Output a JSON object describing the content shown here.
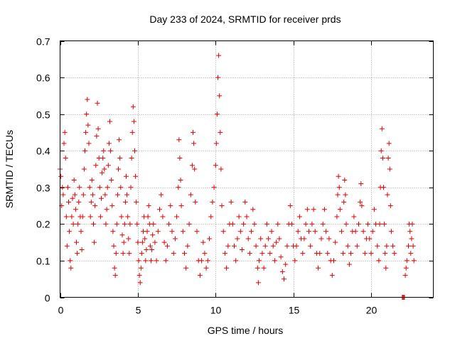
{
  "chart_data": {
    "type": "scatter",
    "title": "Day 233 of 2024, SRMTID for receiver prds",
    "xlabel": "GPS time / hours",
    "ylabel": "SRMTID / TECUs",
    "xlim": [
      0,
      24
    ],
    "ylim": [
      0,
      0.7
    ],
    "xticks": [
      0,
      5,
      10,
      15,
      20
    ],
    "yticks": [
      0,
      0.1,
      0.2,
      0.3,
      0.4,
      0.5,
      0.6,
      0.7
    ],
    "xtick_labels": [
      "0",
      "5",
      "10",
      "15",
      "20"
    ],
    "ytick_labels": [
      "0",
      "0.1",
      "0.2",
      "0.3",
      "0.4",
      "0.5",
      "0.6",
      "0.7"
    ],
    "grid": true,
    "marker": "+",
    "color": "#e00000",
    "series": [
      {
        "name": "SRMTID",
        "points": [
          [
            0.0,
            0.35
          ],
          [
            0.05,
            0.33
          ],
          [
            0.1,
            0.25
          ],
          [
            0.15,
            0.3
          ],
          [
            0.2,
            0.28
          ],
          [
            0.25,
            0.42
          ],
          [
            0.3,
            0.45
          ],
          [
            0.35,
            0.38
          ],
          [
            0.4,
            0.22
          ],
          [
            0.45,
            0.14
          ],
          [
            0.5,
            0.3
          ],
          [
            0.55,
            0.26
          ],
          [
            0.6,
            0.18
          ],
          [
            0.65,
            0.1
          ],
          [
            0.7,
            0.08
          ],
          [
            0.75,
            0.22
          ],
          [
            0.8,
            0.27
          ],
          [
            0.85,
            0.2
          ],
          [
            0.9,
            0.32
          ],
          [
            0.95,
            0.28
          ],
          [
            1.0,
            0.24
          ],
          [
            1.05,
            0.15
          ],
          [
            1.1,
            0.12
          ],
          [
            1.15,
            0.2
          ],
          [
            1.2,
            0.26
          ],
          [
            1.25,
            0.3
          ],
          [
            1.3,
            0.22
          ],
          [
            1.35,
            0.18
          ],
          [
            1.4,
            0.13
          ],
          [
            1.45,
            0.22
          ],
          [
            1.5,
            0.28
          ],
          [
            1.55,
            0.35
          ],
          [
            1.6,
            0.4
          ],
          [
            1.65,
            0.45
          ],
          [
            1.7,
            0.5
          ],
          [
            1.75,
            0.54
          ],
          [
            1.8,
            0.47
          ],
          [
            1.85,
            0.42
          ],
          [
            1.9,
            0.3
          ],
          [
            1.95,
            0.22
          ],
          [
            2.0,
            0.26
          ],
          [
            2.05,
            0.32
          ],
          [
            2.1,
            0.28
          ],
          [
            2.15,
            0.2
          ],
          [
            2.2,
            0.15
          ],
          [
            2.25,
            0.25
          ],
          [
            2.3,
            0.36
          ],
          [
            2.35,
            0.44
          ],
          [
            2.4,
            0.53
          ],
          [
            2.45,
            0.46
          ],
          [
            2.5,
            0.38
          ],
          [
            2.55,
            0.3
          ],
          [
            2.6,
            0.22
          ],
          [
            2.65,
            0.27
          ],
          [
            2.7,
            0.34
          ],
          [
            2.75,
            0.38
          ],
          [
            2.8,
            0.4
          ],
          [
            2.85,
            0.35
          ],
          [
            2.9,
            0.28
          ],
          [
            2.95,
            0.2
          ],
          [
            3.0,
            0.24
          ],
          [
            3.05,
            0.3
          ],
          [
            3.1,
            0.36
          ],
          [
            3.15,
            0.42
          ],
          [
            3.2,
            0.48
          ],
          [
            3.25,
            0.4
          ],
          [
            3.3,
            0.32
          ],
          [
            3.35,
            0.25
          ],
          [
            3.4,
            0.18
          ],
          [
            3.45,
            0.14
          ],
          [
            3.5,
            0.08
          ],
          [
            3.55,
            0.06
          ],
          [
            3.6,
            0.12
          ],
          [
            3.65,
            0.2
          ],
          [
            3.7,
            0.28
          ],
          [
            3.75,
            0.35
          ],
          [
            3.8,
            0.43
          ],
          [
            3.85,
            0.38
          ],
          [
            3.9,
            0.3
          ],
          [
            3.95,
            0.22
          ],
          [
            4.0,
            0.17
          ],
          [
            4.05,
            0.12
          ],
          [
            4.1,
            0.15
          ],
          [
            4.15,
            0.2
          ],
          [
            4.2,
            0.26
          ],
          [
            4.25,
            0.33
          ],
          [
            4.3,
            0.28
          ],
          [
            4.35,
            0.22
          ],
          [
            4.4,
            0.16
          ],
          [
            4.45,
            0.12
          ],
          [
            4.5,
            0.2
          ],
          [
            4.55,
            0.3
          ],
          [
            4.6,
            0.38
          ],
          [
            4.65,
            0.45
          ],
          [
            4.7,
            0.52
          ],
          [
            4.75,
            0.48
          ],
          [
            4.8,
            0.4
          ],
          [
            4.85,
            0.33
          ],
          [
            4.9,
            0.26
          ],
          [
            4.95,
            0.2
          ],
          [
            5.0,
            0.15
          ],
          [
            5.05,
            0.1
          ],
          [
            5.1,
            0.06
          ],
          [
            5.15,
            0.04
          ],
          [
            5.2,
            0.08
          ],
          [
            5.25,
            0.12
          ],
          [
            5.3,
            0.15
          ],
          [
            5.35,
            0.18
          ],
          [
            5.4,
            0.22
          ],
          [
            5.45,
            0.16
          ],
          [
            5.5,
            0.1
          ],
          [
            5.55,
            0.13
          ],
          [
            5.6,
            0.18
          ],
          [
            5.65,
            0.22
          ],
          [
            5.7,
            0.25
          ],
          [
            5.75,
            0.2
          ],
          [
            5.8,
            0.14
          ],
          [
            5.85,
            0.1
          ],
          [
            5.9,
            0.13
          ],
          [
            5.95,
            0.17
          ],
          [
            6.0,
            0.2
          ],
          [
            6.1,
            0.15
          ],
          [
            6.2,
            0.1
          ],
          [
            6.3,
            0.18
          ],
          [
            6.4,
            0.24
          ],
          [
            6.5,
            0.28
          ],
          [
            6.6,
            0.22
          ],
          [
            6.7,
            0.15
          ],
          [
            6.8,
            0.1
          ],
          [
            6.9,
            0.14
          ],
          [
            7.0,
            0.2
          ],
          [
            7.1,
            0.25
          ],
          [
            7.2,
            0.18
          ],
          [
            7.3,
            0.12
          ],
          [
            7.4,
            0.16
          ],
          [
            7.5,
            0.22
          ],
          [
            7.6,
            0.3
          ],
          [
            7.65,
            0.43
          ],
          [
            7.7,
            0.38
          ],
          [
            7.75,
            0.32
          ],
          [
            7.8,
            0.25
          ],
          [
            7.9,
            0.18
          ],
          [
            8.0,
            0.12
          ],
          [
            8.1,
            0.08
          ],
          [
            8.2,
            0.14
          ],
          [
            8.3,
            0.2
          ],
          [
            8.4,
            0.28
          ],
          [
            8.5,
            0.36
          ],
          [
            8.55,
            0.45
          ],
          [
            8.6,
            0.42
          ],
          [
            8.65,
            0.35
          ],
          [
            8.7,
            0.26
          ],
          [
            8.8,
            0.18
          ],
          [
            8.9,
            0.1
          ],
          [
            9.0,
            0.06
          ],
          [
            9.1,
            0.1
          ],
          [
            9.2,
            0.15
          ],
          [
            9.3,
            0.12
          ],
          [
            9.4,
            0.08
          ],
          [
            9.5,
            0.1
          ],
          [
            9.6,
            0.16
          ],
          [
            9.7,
            0.22
          ],
          [
            9.8,
            0.26
          ],
          [
            9.9,
            0.3
          ],
          [
            10.0,
            0.36
          ],
          [
            10.05,
            0.42
          ],
          [
            10.1,
            0.5
          ],
          [
            10.15,
            0.6
          ],
          [
            10.2,
            0.66
          ],
          [
            10.25,
            0.55
          ],
          [
            10.3,
            0.45
          ],
          [
            10.35,
            0.35
          ],
          [
            10.4,
            0.25
          ],
          [
            10.5,
            0.18
          ],
          [
            10.6,
            0.12
          ],
          [
            10.7,
            0.08
          ],
          [
            10.8,
            0.14
          ],
          [
            10.9,
            0.2
          ],
          [
            11.0,
            0.26
          ],
          [
            11.1,
            0.2
          ],
          [
            11.2,
            0.14
          ],
          [
            11.3,
            0.1
          ],
          [
            11.4,
            0.16
          ],
          [
            11.5,
            0.22
          ],
          [
            11.6,
            0.18
          ],
          [
            11.7,
            0.13
          ],
          [
            11.8,
            0.2
          ],
          [
            11.9,
            0.26
          ],
          [
            12.0,
            0.22
          ],
          [
            12.1,
            0.16
          ],
          [
            12.2,
            0.12
          ],
          [
            12.3,
            0.18
          ],
          [
            12.4,
            0.24
          ],
          [
            12.5,
            0.2
          ],
          [
            12.6,
            0.14
          ],
          [
            12.7,
            0.08
          ],
          [
            12.75,
            0.04
          ],
          [
            12.8,
            0.1
          ],
          [
            12.9,
            0.16
          ],
          [
            13.0,
            0.12
          ],
          [
            13.1,
            0.08
          ],
          [
            13.2,
            0.14
          ],
          [
            13.3,
            0.2
          ],
          [
            13.4,
            0.16
          ],
          [
            13.5,
            0.12
          ],
          [
            13.6,
            0.18
          ],
          [
            13.7,
            0.14
          ],
          [
            13.8,
            0.1
          ],
          [
            13.9,
            0.15
          ],
          [
            14.0,
            0.2
          ],
          [
            14.1,
            0.16
          ],
          [
            14.2,
            0.11
          ],
          [
            14.3,
            0.07
          ],
          [
            14.4,
            0.05
          ],
          [
            14.5,
            0.09
          ],
          [
            14.6,
            0.14
          ],
          [
            14.7,
            0.2
          ],
          [
            14.8,
            0.25
          ],
          [
            14.9,
            0.2
          ],
          [
            15.0,
            0.14
          ],
          [
            15.1,
            0.1
          ],
          [
            15.2,
            0.14
          ],
          [
            15.3,
            0.18
          ],
          [
            15.4,
            0.22
          ],
          [
            15.5,
            0.16
          ],
          [
            15.6,
            0.12
          ],
          [
            15.7,
            0.16
          ],
          [
            15.8,
            0.2
          ],
          [
            15.9,
            0.24
          ],
          [
            16.0,
            0.18
          ],
          [
            16.1,
            0.14
          ],
          [
            16.2,
            0.2
          ],
          [
            16.3,
            0.24
          ],
          [
            16.4,
            0.18
          ],
          [
            16.5,
            0.12
          ],
          [
            16.6,
            0.08
          ],
          [
            16.7,
            0.12
          ],
          [
            16.8,
            0.16
          ],
          [
            16.9,
            0.2
          ],
          [
            17.0,
            0.24
          ],
          [
            17.1,
            0.18
          ],
          [
            17.2,
            0.12
          ],
          [
            17.3,
            0.16
          ],
          [
            17.4,
            0.1
          ],
          [
            17.5,
            0.06
          ],
          [
            17.6,
            0.1
          ],
          [
            17.7,
            0.15
          ],
          [
            17.8,
            0.22
          ],
          [
            17.85,
            0.28
          ],
          [
            17.9,
            0.33
          ],
          [
            17.95,
            0.3
          ],
          [
            18.0,
            0.24
          ],
          [
            18.1,
            0.18
          ],
          [
            18.2,
            0.12
          ],
          [
            18.25,
            0.26
          ],
          [
            18.3,
            0.32
          ],
          [
            18.35,
            0.28
          ],
          [
            18.4,
            0.2
          ],
          [
            18.5,
            0.14
          ],
          [
            18.6,
            0.09
          ],
          [
            18.7,
            0.12
          ],
          [
            18.8,
            0.18
          ],
          [
            18.9,
            0.22
          ],
          [
            19.0,
            0.18
          ],
          [
            19.1,
            0.14
          ],
          [
            19.2,
            0.2
          ],
          [
            19.3,
            0.26
          ],
          [
            19.35,
            0.31
          ],
          [
            19.4,
            0.25
          ],
          [
            19.5,
            0.18
          ],
          [
            19.6,
            0.12
          ],
          [
            19.7,
            0.16
          ],
          [
            19.8,
            0.2
          ],
          [
            19.9,
            0.16
          ],
          [
            20.0,
            0.12
          ],
          [
            20.1,
            0.18
          ],
          [
            20.2,
            0.24
          ],
          [
            20.3,
            0.2
          ],
          [
            20.4,
            0.14
          ],
          [
            20.5,
            0.1
          ],
          [
            20.55,
            0.2
          ],
          [
            20.6,
            0.3
          ],
          [
            20.65,
            0.4
          ],
          [
            20.7,
            0.46
          ],
          [
            20.75,
            0.38
          ],
          [
            20.8,
            0.3
          ],
          [
            20.85,
            0.2
          ],
          [
            20.9,
            0.12
          ],
          [
            20.95,
            0.08
          ],
          [
            21.0,
            0.14
          ],
          [
            21.05,
            0.28
          ],
          [
            21.1,
            0.38
          ],
          [
            21.15,
            0.42
          ],
          [
            21.2,
            0.35
          ],
          [
            21.25,
            0.25
          ],
          [
            21.3,
            0.18
          ],
          [
            21.4,
            0.14
          ],
          [
            21.5,
            0.12
          ],
          [
            22.0,
            0.0
          ],
          [
            22.05,
            0.0
          ],
          [
            22.1,
            0.0
          ],
          [
            22.15,
            0.0
          ],
          [
            22.2,
            0.06
          ],
          [
            22.25,
            0.08
          ],
          [
            22.3,
            0.1
          ],
          [
            22.4,
            0.14
          ],
          [
            22.45,
            0.2
          ],
          [
            22.5,
            0.18
          ],
          [
            22.55,
            0.12
          ],
          [
            22.6,
            0.16
          ],
          [
            22.65,
            0.2
          ],
          [
            22.7,
            0.14
          ],
          [
            22.75,
            0.1
          ]
        ]
      }
    ]
  }
}
